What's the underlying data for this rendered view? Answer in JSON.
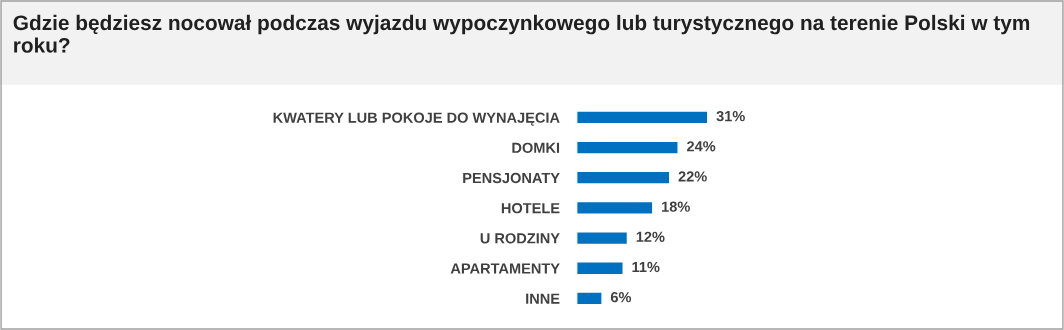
{
  "chart_data": {
    "type": "bar",
    "orientation": "horizontal",
    "title": "Gdzie będziesz nocował podczas wyjazdu wypoczynkowego lub turystycznego na terenie Polski w tym roku?",
    "categories": [
      "KWATERY LUB POKOJE DO WYNAJĘCIA",
      "DOMKI",
      "PENSJONATY",
      "HOTELE",
      "U RODZINY",
      "APARTAMENTY",
      "INNE"
    ],
    "values": [
      31,
      24,
      22,
      18,
      12,
      11,
      6
    ],
    "value_labels": [
      "31%",
      "24%",
      "22%",
      "18%",
      "12%",
      "11%",
      "6%"
    ],
    "color": "#0070c0",
    "grid": false,
    "legend": false
  }
}
